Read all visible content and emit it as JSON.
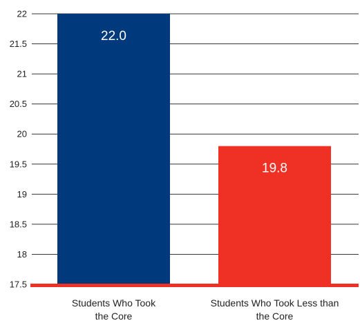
{
  "chart_data": {
    "type": "bar",
    "title": "",
    "xlabel": "",
    "ylabel": "",
    "categories": [
      [
        "Students Who Took",
        "the Core"
      ],
      [
        "Students Who Took Less than",
        "the Core"
      ]
    ],
    "values": [
      22.0,
      19.8
    ],
    "value_labels": [
      "22.0",
      "19.8"
    ],
    "ylim": [
      17.5,
      22
    ],
    "yticks": [
      "17.5",
      "18",
      "18.5",
      "19",
      "19.5",
      "20",
      "20.5",
      "21",
      "21.5",
      "22"
    ],
    "grid": true,
    "colors": {
      "bars": [
        "#003a7d",
        "#ee3124"
      ],
      "baseline": "#ee3124",
      "grid": "#333333"
    }
  }
}
